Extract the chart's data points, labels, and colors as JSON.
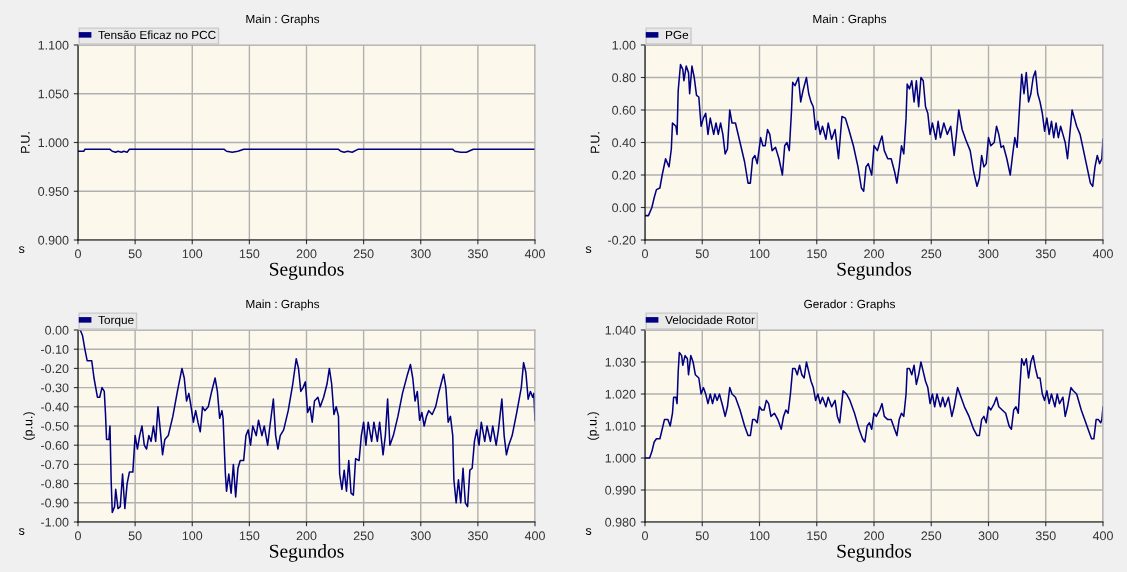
{
  "chart_data": [
    {
      "type": "line",
      "title": "Main : Graphs",
      "xlabel": "Segundos",
      "ylabel": "P.U.",
      "annotations": [
        "s"
      ],
      "legend": "top left",
      "grid": true,
      "xlim": [
        0,
        400
      ],
      "xticks": [
        0,
        50,
        100,
        150,
        200,
        250,
        300,
        350,
        400
      ],
      "ylim": [
        0.9,
        1.1
      ],
      "yticks": [
        {
          "value": 0.9,
          "label": "0.900"
        },
        {
          "value": 0.95,
          "label": "0.950"
        },
        {
          "value": 1.0,
          "label": "1.000"
        },
        {
          "value": 1.05,
          "label": "1.050"
        },
        {
          "value": 1.1,
          "label": "1.100"
        }
      ],
      "series": [
        {
          "name": "Tensão Eficaz no PCC",
          "color": "#000080",
          "x": [
            0,
            5,
            6,
            28,
            30,
            33,
            35,
            38,
            40,
            43,
            45,
            128,
            130,
            135,
            140,
            145,
            228,
            230,
            233,
            236,
            240,
            245,
            328,
            330,
            335,
            340,
            342,
            346,
            400
          ],
          "values": [
            0.991,
            0.991,
            0.993,
            0.993,
            0.991,
            0.99,
            0.991,
            0.99,
            0.991,
            0.99,
            0.993,
            0.993,
            0.991,
            0.99,
            0.991,
            0.993,
            0.993,
            0.991,
            0.99,
            0.991,
            0.99,
            0.993,
            0.993,
            0.991,
            0.99,
            0.99,
            0.991,
            0.993,
            0.993
          ]
        }
      ]
    },
    {
      "type": "line",
      "title": "Main : Graphs",
      "xlabel": "Segundos",
      "ylabel": "P.U.",
      "annotations": [
        "s"
      ],
      "legend": "top left",
      "grid": true,
      "xlim": [
        0,
        400
      ],
      "xticks": [
        0,
        50,
        100,
        150,
        200,
        250,
        300,
        350,
        400
      ],
      "ylim": [
        -0.2,
        1.0
      ],
      "yticks": [
        {
          "value": -0.2,
          "label": "-0.20"
        },
        {
          "value": 0,
          "label": "0.00"
        },
        {
          "value": 0.2,
          "label": "0.20"
        },
        {
          "value": 0.4,
          "label": "0.40"
        },
        {
          "value": 0.6,
          "label": "0.60"
        },
        {
          "value": 0.8,
          "label": "0.80"
        },
        {
          "value": 1.0,
          "label": "1.00"
        }
      ],
      "series": [
        {
          "name": "PGe",
          "color": "#000080",
          "x": [
            0,
            3,
            6,
            8,
            10,
            13,
            15,
            18,
            21,
            23,
            24,
            27,
            28,
            29,
            31,
            33,
            34,
            36,
            38,
            39,
            41,
            43,
            45,
            47,
            49,
            51,
            53,
            55,
            57,
            60,
            62,
            64,
            66,
            68,
            70,
            72,
            74,
            76,
            79,
            83,
            87,
            90,
            92,
            94,
            96,
            98,
            101,
            103,
            105,
            107,
            109,
            111,
            114,
            117,
            120,
            122,
            124,
            126,
            128,
            129,
            131,
            134,
            136,
            138,
            141,
            143,
            145,
            147,
            149,
            151,
            153,
            155,
            158,
            160,
            163,
            166,
            169,
            172,
            175,
            178,
            182,
            186,
            189,
            191,
            193,
            195,
            198,
            200,
            203,
            205,
            207,
            209,
            212,
            215,
            218,
            220,
            222,
            224,
            226,
            228,
            229,
            231,
            233,
            235,
            237,
            239,
            241,
            243,
            245,
            247,
            249,
            251,
            254,
            256,
            258,
            261,
            264,
            267,
            270,
            272,
            274,
            277,
            280,
            284,
            287,
            290,
            292,
            294,
            296,
            298,
            300,
            302,
            305,
            307,
            309,
            311,
            313,
            316,
            319,
            321,
            323,
            325,
            327,
            329,
            331,
            333,
            335,
            337,
            339,
            341,
            343,
            345,
            347,
            349,
            351,
            353,
            355,
            357,
            359,
            361,
            363,
            365,
            367,
            369,
            371,
            373,
            375,
            377,
            380,
            383,
            386,
            389,
            391,
            393,
            395,
            397,
            399,
            400
          ],
          "values": [
            -0.05,
            -0.05,
            0.0,
            0.06,
            0.11,
            0.12,
            0.2,
            0.3,
            0.25,
            0.36,
            0.52,
            0.5,
            0.45,
            0.72,
            0.88,
            0.85,
            0.78,
            0.87,
            0.83,
            0.7,
            0.87,
            0.8,
            0.69,
            0.68,
            0.5,
            0.55,
            0.58,
            0.45,
            0.55,
            0.45,
            0.52,
            0.45,
            0.52,
            0.45,
            0.33,
            0.36,
            0.6,
            0.52,
            0.52,
            0.4,
            0.28,
            0.15,
            0.15,
            0.3,
            0.32,
            0.27,
            0.43,
            0.38,
            0.38,
            0.48,
            0.45,
            0.35,
            0.37,
            0.3,
            0.2,
            0.38,
            0.4,
            0.35,
            0.6,
            0.77,
            0.75,
            0.8,
            0.65,
            0.72,
            0.8,
            0.7,
            0.65,
            0.62,
            0.48,
            0.53,
            0.45,
            0.5,
            0.42,
            0.52,
            0.42,
            0.48,
            0.3,
            0.56,
            0.55,
            0.48,
            0.38,
            0.25,
            0.12,
            0.1,
            0.25,
            0.27,
            0.2,
            0.38,
            0.35,
            0.4,
            0.44,
            0.35,
            0.3,
            0.3,
            0.22,
            0.15,
            0.25,
            0.38,
            0.33,
            0.55,
            0.76,
            0.73,
            0.78,
            0.65,
            0.78,
            0.62,
            0.8,
            0.78,
            0.62,
            0.58,
            0.45,
            0.52,
            0.42,
            0.53,
            0.43,
            0.52,
            0.45,
            0.5,
            0.32,
            0.45,
            0.6,
            0.48,
            0.42,
            0.35,
            0.22,
            0.13,
            0.18,
            0.32,
            0.25,
            0.27,
            0.43,
            0.38,
            0.4,
            0.5,
            0.45,
            0.37,
            0.38,
            0.3,
            0.2,
            0.32,
            0.43,
            0.37,
            0.6,
            0.82,
            0.7,
            0.83,
            0.65,
            0.7,
            0.8,
            0.84,
            0.7,
            0.65,
            0.58,
            0.47,
            0.55,
            0.45,
            0.53,
            0.43,
            0.52,
            0.43,
            0.5,
            0.45,
            0.4,
            0.3,
            0.45,
            0.6,
            0.55,
            0.5,
            0.45,
            0.35,
            0.25,
            0.15,
            0.13,
            0.25,
            0.32,
            0.27,
            0.3,
            0.42
          ]
        }
      ]
    },
    {
      "type": "line",
      "title": "Main : Graphs",
      "xlabel": "Segundos",
      "ylabel": "(p.u.)",
      "annotations": [
        "s"
      ],
      "legend": "top left",
      "grid": true,
      "xlim": [
        0,
        400
      ],
      "xticks": [
        0,
        50,
        100,
        150,
        200,
        250,
        300,
        350,
        400
      ],
      "ylim": [
        -1.0,
        0.0
      ],
      "yticks": [
        {
          "value": -1.0,
          "label": "-1.00"
        },
        {
          "value": -0.9,
          "label": "-0.90"
        },
        {
          "value": -0.8,
          "label": "-0.80"
        },
        {
          "value": -0.7,
          "label": "-0.70"
        },
        {
          "value": -0.6,
          "label": "-0.60"
        },
        {
          "value": -0.5,
          "label": "-0.50"
        },
        {
          "value": -0.4,
          "label": "-0.40"
        },
        {
          "value": -0.3,
          "label": "-0.30"
        },
        {
          "value": -0.2,
          "label": "-0.20"
        },
        {
          "value": -0.1,
          "label": "-0.10"
        },
        {
          "value": 0,
          "label": "0.00"
        }
      ],
      "series": [
        {
          "name": "Torque",
          "color": "#000080",
          "x": [
            0,
            2,
            4,
            6,
            8,
            12,
            14,
            17,
            19,
            21,
            23,
            24,
            25,
            27,
            28,
            29,
            30,
            32,
            33,
            35,
            37,
            39,
            41,
            43,
            45,
            48,
            50,
            52,
            54,
            56,
            58,
            60,
            62,
            64,
            66,
            68,
            70,
            72,
            74,
            76,
            79,
            83,
            87,
            91,
            93,
            95,
            97,
            99,
            101,
            103,
            105,
            107,
            109,
            111,
            114,
            117,
            120,
            122,
            124,
            126,
            127,
            129,
            130,
            132,
            134,
            136,
            138,
            140,
            142,
            145,
            147,
            149,
            151,
            153,
            156,
            158,
            161,
            163,
            166,
            168,
            171,
            173,
            175,
            177,
            180,
            184,
            188,
            191,
            193,
            195,
            197,
            199,
            201,
            203,
            205,
            207,
            210,
            212,
            215,
            218,
            220,
            222,
            224,
            226,
            228,
            229,
            231,
            233,
            235,
            237,
            239,
            241,
            243,
            246,
            248,
            250,
            252,
            254,
            257,
            259,
            262,
            264,
            267,
            269,
            271,
            273,
            276,
            280,
            284,
            288,
            291,
            293,
            295,
            297,
            299,
            301,
            303,
            305,
            307,
            310,
            313,
            316,
            320,
            322,
            324,
            326,
            328,
            329,
            331,
            333,
            335,
            337,
            339,
            341,
            343,
            345,
            347,
            349,
            351,
            353,
            356,
            358,
            361,
            363,
            366,
            368,
            371,
            373,
            375,
            377,
            380,
            384,
            388,
            390,
            392,
            394,
            396,
            398,
            399,
            400
          ],
          "values": [
            0.0,
            0.0,
            -0.03,
            -0.1,
            -0.16,
            -0.16,
            -0.25,
            -0.35,
            -0.35,
            -0.3,
            -0.32,
            -0.43,
            -0.57,
            -0.57,
            -0.5,
            -0.78,
            -0.95,
            -0.92,
            -0.83,
            -0.93,
            -0.92,
            -0.75,
            -0.93,
            -0.8,
            -0.74,
            -0.74,
            -0.55,
            -0.62,
            -0.55,
            -0.5,
            -0.6,
            -0.62,
            -0.55,
            -0.58,
            -0.5,
            -0.58,
            -0.4,
            -0.52,
            -0.65,
            -0.57,
            -0.55,
            -0.45,
            -0.32,
            -0.2,
            -0.25,
            -0.37,
            -0.33,
            -0.4,
            -0.48,
            -0.42,
            -0.48,
            -0.53,
            -0.4,
            -0.42,
            -0.4,
            -0.32,
            -0.25,
            -0.32,
            -0.46,
            -0.42,
            -0.46,
            -0.75,
            -0.84,
            -0.75,
            -0.85,
            -0.7,
            -0.87,
            -0.72,
            -0.68,
            -0.68,
            -0.55,
            -0.52,
            -0.6,
            -0.5,
            -0.55,
            -0.47,
            -0.55,
            -0.5,
            -0.6,
            -0.5,
            -0.36,
            -0.55,
            -0.62,
            -0.55,
            -0.52,
            -0.42,
            -0.28,
            -0.15,
            -0.2,
            -0.32,
            -0.3,
            -0.27,
            -0.43,
            -0.4,
            -0.48,
            -0.37,
            -0.35,
            -0.4,
            -0.35,
            -0.28,
            -0.2,
            -0.28,
            -0.44,
            -0.4,
            -0.45,
            -0.75,
            -0.83,
            -0.73,
            -0.84,
            -0.68,
            -0.85,
            -0.86,
            -0.67,
            -0.68,
            -0.55,
            -0.48,
            -0.6,
            -0.48,
            -0.58,
            -0.48,
            -0.58,
            -0.48,
            -0.65,
            -0.55,
            -0.36,
            -0.6,
            -0.55,
            -0.45,
            -0.33,
            -0.24,
            -0.18,
            -0.25,
            -0.37,
            -0.32,
            -0.47,
            -0.43,
            -0.5,
            -0.45,
            -0.42,
            -0.44,
            -0.4,
            -0.32,
            -0.23,
            -0.3,
            -0.48,
            -0.45,
            -0.55,
            -0.78,
            -0.9,
            -0.78,
            -0.9,
            -0.72,
            -0.9,
            -0.92,
            -0.73,
            -0.72,
            -0.58,
            -0.52,
            -0.6,
            -0.48,
            -0.58,
            -0.5,
            -0.58,
            -0.5,
            -0.6,
            -0.52,
            -0.36,
            -0.55,
            -0.65,
            -0.6,
            -0.55,
            -0.43,
            -0.3,
            -0.17,
            -0.22,
            -0.36,
            -0.32,
            -0.35,
            -0.33,
            -0.47
          ]
        }
      ]
    },
    {
      "type": "line",
      "title": "Gerador : Graphs",
      "xlabel": "Segundos",
      "ylabel": "(p.u.)",
      "annotations": [
        "s"
      ],
      "legend": "top left",
      "grid": true,
      "xlim": [
        0,
        400
      ],
      "xticks": [
        0,
        50,
        100,
        150,
        200,
        250,
        300,
        350,
        400
      ],
      "ylim": [
        0.98,
        1.04
      ],
      "yticks": [
        {
          "value": 0.98,
          "label": "0.980"
        },
        {
          "value": 0.99,
          "label": "0.990"
        },
        {
          "value": 1.0,
          "label": "1.000"
        },
        {
          "value": 1.01,
          "label": "1.010"
        },
        {
          "value": 1.02,
          "label": "1.020"
        },
        {
          "value": 1.03,
          "label": "1.030"
        },
        {
          "value": 1.04,
          "label": "1.040"
        }
      ],
      "series": [
        {
          "name": "Velocidade Rotor",
          "color": "#000080",
          "x": [
            0,
            4,
            6,
            8,
            10,
            13,
            15,
            17,
            20,
            22,
            24,
            25,
            27,
            28,
            29,
            30,
            32,
            33,
            35,
            37,
            38,
            40,
            42,
            44,
            47,
            49,
            51,
            53,
            55,
            57,
            59,
            61,
            63,
            65,
            68,
            70,
            72,
            74,
            76,
            79,
            83,
            87,
            90,
            92,
            94,
            96,
            98,
            100,
            102,
            104,
            106,
            108,
            110,
            113,
            116,
            119,
            121,
            123,
            125,
            127,
            129,
            131,
            133,
            135,
            137,
            139,
            141,
            143,
            145,
            147,
            149,
            151,
            153,
            155,
            158,
            160,
            163,
            166,
            168,
            170,
            173,
            176,
            179,
            183,
            187,
            190,
            192,
            194,
            196,
            198,
            200,
            202,
            205,
            207,
            209,
            212,
            215,
            218,
            220,
            222,
            224,
            226,
            228,
            229,
            231,
            233,
            235,
            237,
            239,
            241,
            243,
            245,
            247,
            249,
            251,
            253,
            255,
            258,
            260,
            262,
            265,
            268,
            270,
            273,
            276,
            279,
            283,
            287,
            290,
            292,
            294,
            296,
            298,
            300,
            302,
            305,
            307,
            309,
            312,
            315,
            318,
            320,
            322,
            324,
            326,
            327,
            329,
            331,
            333,
            335,
            337,
            339,
            341,
            343,
            345,
            347,
            349,
            351,
            353,
            355,
            358,
            360,
            362,
            365,
            367,
            369,
            372,
            374,
            377,
            381,
            385,
            388,
            390,
            392,
            394,
            396,
            398,
            399,
            400
          ],
          "values": [
            1.0,
            1.0,
            1.002,
            1.005,
            1.006,
            1.006,
            1.009,
            1.012,
            1.012,
            1.01,
            1.014,
            1.019,
            1.019,
            1.017,
            1.027,
            1.033,
            1.032,
            1.029,
            1.032,
            1.031,
            1.026,
            1.032,
            1.03,
            1.026,
            1.025,
            1.02,
            1.022,
            1.02,
            1.017,
            1.02,
            1.017,
            1.02,
            1.018,
            1.02,
            1.016,
            1.013,
            1.016,
            1.022,
            1.02,
            1.019,
            1.015,
            1.01,
            1.007,
            1.007,
            1.012,
            1.012,
            1.011,
            1.016,
            1.015,
            1.015,
            1.018,
            1.017,
            1.013,
            1.014,
            1.012,
            1.009,
            1.013,
            1.015,
            1.014,
            1.02,
            1.028,
            1.028,
            1.026,
            1.029,
            1.026,
            1.025,
            1.03,
            1.027,
            1.024,
            1.022,
            1.018,
            1.02,
            1.017,
            1.019,
            1.016,
            1.019,
            1.016,
            1.018,
            1.013,
            1.011,
            1.021,
            1.02,
            1.018,
            1.014,
            1.009,
            1.006,
            1.005,
            1.01,
            1.011,
            1.009,
            1.014,
            1.013,
            1.015,
            1.017,
            1.013,
            1.012,
            1.012,
            1.009,
            1.007,
            1.012,
            1.014,
            1.013,
            1.02,
            1.028,
            1.028,
            1.026,
            1.029,
            1.023,
            1.026,
            1.03,
            1.027,
            1.024,
            1.022,
            1.017,
            1.02,
            1.016,
            1.02,
            1.016,
            1.019,
            1.016,
            1.019,
            1.013,
            1.016,
            1.022,
            1.019,
            1.016,
            1.013,
            1.009,
            1.007,
            1.007,
            1.012,
            1.013,
            1.011,
            1.016,
            1.015,
            1.017,
            1.019,
            1.016,
            1.015,
            1.014,
            1.01,
            1.009,
            1.015,
            1.016,
            1.014,
            1.02,
            1.031,
            1.029,
            1.031,
            1.025,
            1.03,
            1.032,
            1.028,
            1.025,
            1.025,
            1.02,
            1.018,
            1.021,
            1.017,
            1.02,
            1.016,
            1.02,
            1.017,
            1.019,
            1.013,
            1.016,
            1.022,
            1.021,
            1.02,
            1.015,
            1.011,
            1.008,
            1.006,
            1.006,
            1.012,
            1.012,
            1.011,
            1.012,
            1.016
          ]
        }
      ]
    }
  ]
}
